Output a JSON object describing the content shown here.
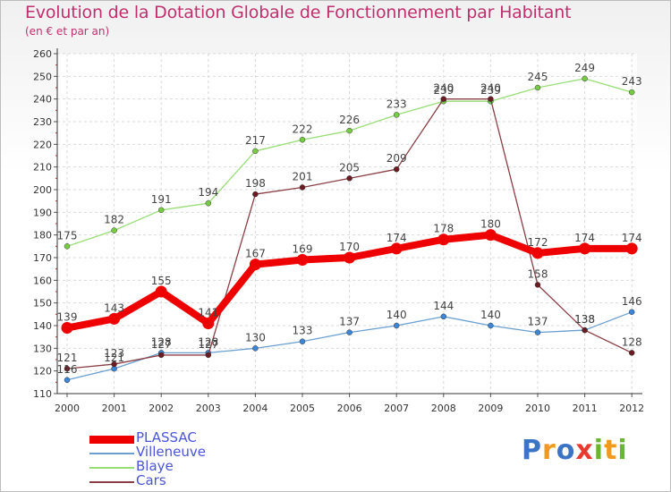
{
  "title": "Evolution de la Dotation Globale de Fonctionnement par Habitant",
  "subtitle": "(en € et par an)",
  "logo": {
    "letters": [
      "P",
      "r",
      "o",
      "x",
      "i",
      "t",
      "i"
    ],
    "colors": [
      "#3b74c5",
      "#f39a1e",
      "#3b74c5",
      "#e83a2e",
      "#6cb532",
      "#f39a1e",
      "#6cb532"
    ]
  },
  "chart_data": {
    "type": "line",
    "title": "Evolution de la Dotation Globale de Fonctionnement par Habitant",
    "subtitle": "(en € et par an)",
    "x": [
      "2000",
      "2001",
      "2002",
      "2003",
      "2004",
      "2005",
      "2006",
      "2007",
      "2008",
      "2009",
      "2010",
      "2011",
      "2012"
    ],
    "ylim": [
      110,
      260
    ],
    "yticks": [
      110,
      120,
      130,
      140,
      150,
      160,
      170,
      180,
      190,
      200,
      210,
      220,
      230,
      240,
      250,
      260
    ],
    "grid": true,
    "legend_position": "bottom-left",
    "series": [
      {
        "name": "PLASSAC",
        "color": "#ee0000",
        "marker": "#ee0000",
        "width": 8,
        "values": [
          139,
          143,
          155,
          141,
          167,
          169,
          170,
          174,
          178,
          180,
          172,
          174,
          174
        ],
        "labels": [
          "139",
          "143",
          "155",
          "141",
          "167",
          "169",
          "170",
          "174",
          "178",
          "180",
          "172",
          "174",
          "174"
        ]
      },
      {
        "name": "Villeneuve",
        "color": "#6a9fd0",
        "marker": "#3d85d6",
        "width": 1.3,
        "values": [
          116,
          121,
          128,
          128,
          130,
          133,
          137,
          140,
          144,
          140,
          137,
          138,
          146
        ],
        "labels": [
          "116",
          "121",
          "128",
          "128",
          "130",
          "133",
          "137",
          "140",
          "144",
          "140",
          "137",
          "138",
          "146"
        ]
      },
      {
        "name": "Blaye",
        "color": "#99dd77",
        "marker": "#77cc44",
        "width": 1.3,
        "values": [
          175,
          182,
          191,
          194,
          217,
          222,
          226,
          233,
          239,
          239,
          245,
          249,
          243
        ],
        "labels": [
          "175",
          "182",
          "191",
          "194",
          "217",
          "222",
          "226",
          "233",
          "239",
          "239",
          "245",
          "249",
          "243"
        ]
      },
      {
        "name": "Cars",
        "color": "#8a3f45",
        "marker": "#6a1c22",
        "width": 1.3,
        "values": [
          121,
          123,
          127,
          127,
          198,
          201,
          205,
          209,
          240,
          240,
          158,
          138,
          128
        ],
        "labels": [
          "121",
          "123",
          "127",
          "127",
          "198",
          "201",
          "205",
          "209",
          "240",
          "240",
          "158",
          "138",
          "128"
        ]
      }
    ]
  }
}
